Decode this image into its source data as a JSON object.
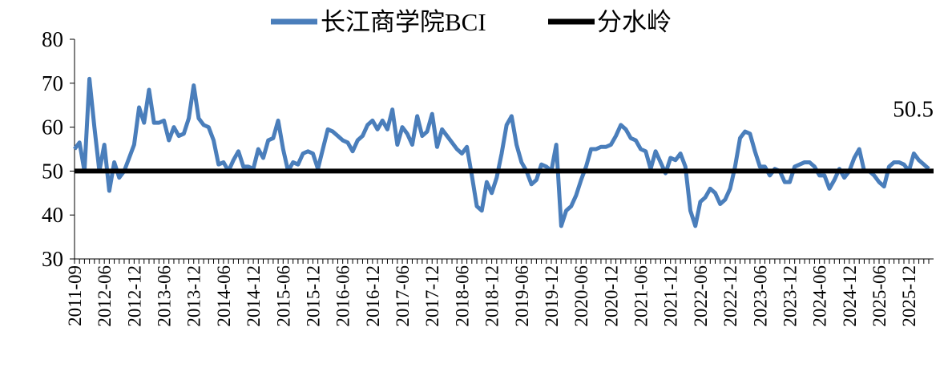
{
  "chart_data": {
    "type": "line",
    "categories": [
      "2011-09",
      null,
      null,
      null,
      null,
      null,
      "2012-06",
      null,
      null,
      null,
      null,
      null,
      "2012-12",
      null,
      null,
      null,
      null,
      null,
      "2013-06",
      null,
      null,
      null,
      null,
      null,
      "2013-12",
      null,
      null,
      null,
      null,
      null,
      "2014-06",
      null,
      null,
      null,
      null,
      null,
      "2014-12",
      null,
      null,
      null,
      null,
      null,
      "2015-06",
      null,
      null,
      null,
      null,
      null,
      "2015-12",
      null,
      null,
      null,
      null,
      null,
      "2016-06",
      null,
      null,
      null,
      null,
      null,
      "2016-12",
      null,
      null,
      null,
      null,
      null,
      "2017-06",
      null,
      null,
      null,
      null,
      null,
      "2017-12",
      null,
      null,
      null,
      null,
      null,
      "2018-06",
      null,
      null,
      null,
      null,
      null,
      "2018-12",
      null,
      null,
      null,
      null,
      null,
      "2019-06",
      null,
      null,
      null,
      null,
      null,
      "2019-12",
      null,
      null,
      null,
      null,
      null,
      "2020-06",
      null,
      null,
      null,
      null,
      null,
      "2020-12",
      null,
      null,
      null,
      null,
      null,
      "2021-06",
      null,
      null,
      null,
      null,
      null,
      "2021-12",
      null,
      null,
      null,
      null,
      null,
      "2022-06",
      null,
      null,
      null,
      null,
      null,
      "2022-12",
      null,
      null,
      null,
      null,
      null,
      "2023-06",
      null,
      null,
      null,
      null,
      null,
      "2023-12",
      null,
      null,
      null,
      null,
      null,
      "2024-06",
      null,
      null,
      null,
      null,
      null,
      "2024-12",
      null,
      null,
      null,
      null,
      null,
      "2025-06",
      null,
      null,
      null,
      null,
      null,
      "2025-12",
      null,
      null,
      null,
      null
    ],
    "series": [
      {
        "name": "长江商学院BCI",
        "color": "#4a7ebb",
        "values": [
          55,
          56.5,
          50,
          71,
          60,
          50,
          56,
          45.5,
          52,
          48.5,
          50,
          53,
          56,
          64.5,
          61,
          68.5,
          61,
          61,
          61.5,
          57,
          60,
          58,
          58.5,
          62,
          69.5,
          62,
          60.5,
          60,
          57,
          51.5,
          52,
          50,
          52.5,
          54.5,
          51,
          51,
          50.5,
          55,
          53,
          57,
          57.5,
          61.5,
          55,
          50,
          52,
          51.5,
          54,
          54.5,
          54,
          50.5,
          55,
          59.5,
          59,
          58,
          57,
          56.5,
          54.5,
          57,
          58,
          60.5,
          61.5,
          59.5,
          61.5,
          59.5,
          64,
          56,
          60,
          58.5,
          56,
          62.5,
          58,
          59,
          63,
          55.5,
          59.5,
          58,
          56.5,
          55,
          54,
          55.5,
          49,
          42,
          41,
          47.5,
          45,
          48.5,
          54,
          60.5,
          62.5,
          56,
          52,
          50,
          47,
          48,
          51.5,
          51,
          50,
          56,
          37.5,
          41,
          42,
          44.5,
          48,
          51,
          55,
          55,
          55.5,
          55.5,
          56,
          58,
          60.5,
          59.5,
          57.5,
          57,
          55,
          54.5,
          50.5,
          54.5,
          52,
          49.5,
          53,
          52.5,
          54,
          51,
          41,
          37.5,
          43,
          44,
          46,
          45,
          42.5,
          43.5,
          46,
          51,
          57.5,
          59,
          58.5,
          54.5,
          51,
          51,
          49,
          50.5,
          50,
          47.5,
          47.5,
          51,
          51.5,
          52,
          52,
          51,
          49,
          49,
          46,
          48,
          50.5,
          48.5,
          50,
          53,
          55,
          50,
          50,
          49,
          47.5,
          46.5,
          51,
          52,
          52,
          51.5,
          50,
          54,
          52.5,
          51.5,
          50.5
        ]
      }
    ],
    "reference_line": {
      "name": "分水岭",
      "color": "#000000",
      "value": 50
    },
    "ylim": [
      30,
      80
    ],
    "yticks": [
      30,
      40,
      50,
      60,
      70,
      80
    ]
  }
}
